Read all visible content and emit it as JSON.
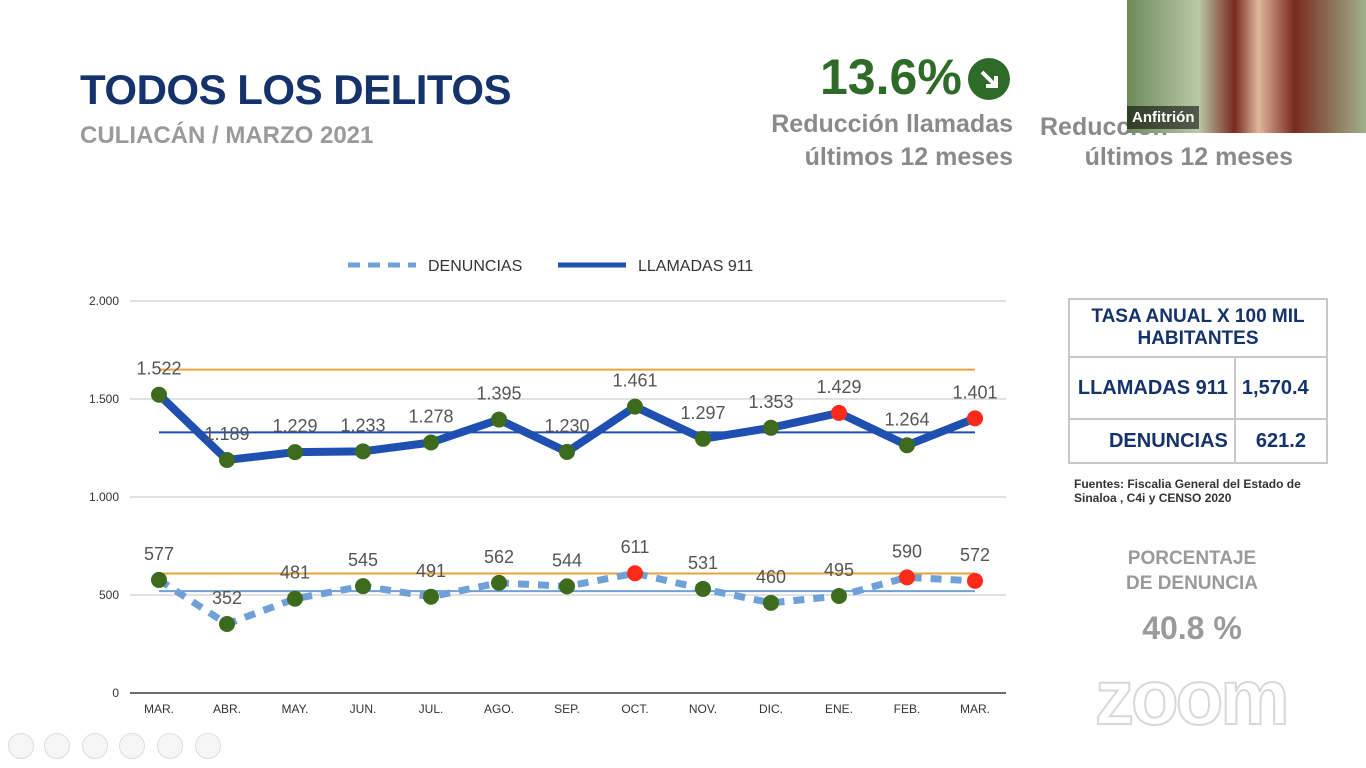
{
  "header": {
    "title": "TODOS LOS DELITOS",
    "subtitle": "CULIACÁN / MARZO 2021"
  },
  "kpi": {
    "value": "13.6%",
    "caption": [
      "Reducción llamadas",
      "últimos 12 meses"
    ],
    "caption_2": [
      "Reducción",
      "últimos 12 meses"
    ]
  },
  "video": {
    "name": "Anfitrión"
  },
  "chart_data": {
    "type": "line",
    "categories": [
      "MAR.",
      "ABR.",
      "MAY.",
      "JUN.",
      "JUL.",
      "AGO.",
      "SEP.",
      "OCT.",
      "NOV.",
      "DIC.",
      "ENE.",
      "FEB.",
      "MAR."
    ],
    "series": [
      {
        "name": "DENUNCIAS",
        "color": "#6fa0d8",
        "line_style": "dashed",
        "values": [
          577,
          352,
          481,
          545,
          491,
          562,
          544,
          611,
          531,
          460,
          495,
          590,
          572
        ],
        "marker_colors": [
          "#3d6b1e",
          "#3d6b1e",
          "#3d6b1e",
          "#3d6b1e",
          "#3d6b1e",
          "#3d6b1e",
          "#3d6b1e",
          "#ff2a1a",
          "#3d6b1e",
          "#3d6b1e",
          "#3d6b1e",
          "#ff2a1a",
          "#ff2a1a"
        ]
      },
      {
        "name": "LLAMADAS 911",
        "color": "#1f4fb0",
        "line_style": "solid",
        "values": [
          1522,
          1189,
          1229,
          1233,
          1278,
          1395,
          1230,
          1461,
          1297,
          1353,
          1429,
          1264,
          1401
        ],
        "value_labels": [
          "1.522",
          "1.189",
          "1.229",
          "1.233",
          "1.278",
          "1.395",
          "1.230",
          "1.461",
          "1.297",
          "1.353",
          "1.429",
          "1.264",
          "1.401"
        ],
        "marker_colors": [
          "#3d6b1e",
          "#3d6b1e",
          "#3d6b1e",
          "#3d6b1e",
          "#3d6b1e",
          "#3d6b1e",
          "#3d6b1e",
          "#3d6b1e",
          "#3d6b1e",
          "#3d6b1e",
          "#ff2a1a",
          "#3d6b1e",
          "#ff2a1a"
        ]
      }
    ],
    "reference_lines": [
      {
        "value": 1650,
        "color": "#e8a33a"
      },
      {
        "value": 1330,
        "color": "#1f4fb0"
      },
      {
        "value": 610,
        "color": "#e8a33a"
      },
      {
        "value": 520,
        "color": "#6fa0d8"
      }
    ],
    "ylim": [
      0,
      2000
    ],
    "yticks": [
      0,
      500,
      {
        "value": 1000,
        "label": "1.000"
      },
      {
        "value": 1500,
        "label": "1.500"
      },
      {
        "value": 2000,
        "label": "2.000"
      }
    ],
    "grid": true,
    "legend": "top"
  },
  "table": {
    "title": "TASA ANUAL X 100 MIL HABITANTES",
    "rows": [
      [
        "LLAMADAS 911",
        "1,570.4"
      ],
      [
        "DENUNCIAS",
        "621.2"
      ]
    ]
  },
  "source": "Fuentes: Fiscalia General del Estado de Sinaloa , C4i y CENSO  2020",
  "percentage": {
    "label": [
      "PORCENTAJE",
      "DE DENUNCIA"
    ],
    "value": "40.8 %"
  },
  "watermark": "zoom"
}
